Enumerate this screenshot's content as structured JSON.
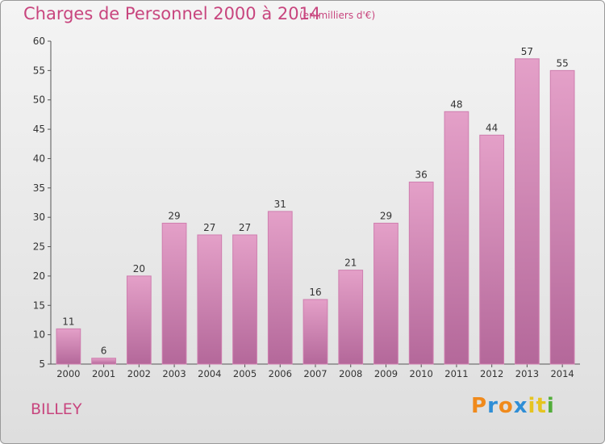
{
  "header": {
    "title": "Charges de Personnel 2000 à 2014",
    "subtitle": "(en milliers d'€)"
  },
  "footer": {
    "commune": "BILLEY",
    "logo_letters": [
      "P",
      "r",
      "o",
      "x",
      "i",
      "t",
      "i"
    ],
    "logo_colors": [
      "#f08a1c",
      "#2f8ed6",
      "#f08a1c",
      "#2f8ed6",
      "#e6c420",
      "#e6c420",
      "#52ad3a"
    ]
  },
  "chart_data": {
    "type": "bar",
    "title": "Charges de Personnel 2000 à 2014",
    "subtitle": "(en milliers d'€)",
    "categories": [
      "2000",
      "2001",
      "2002",
      "2003",
      "2004",
      "2005",
      "2006",
      "2007",
      "2008",
      "2009",
      "2010",
      "2011",
      "2012",
      "2013",
      "2014"
    ],
    "values": [
      11,
      6,
      20,
      29,
      27,
      27,
      31,
      16,
      21,
      29,
      36,
      48,
      44,
      57,
      55
    ],
    "ylim": [
      5,
      60
    ],
    "yticks": [
      5,
      10,
      15,
      20,
      25,
      30,
      35,
      40,
      45,
      50,
      55,
      60
    ],
    "grid": false,
    "colors": {
      "bar_top": "#e4a0c8",
      "bar_bottom": "#b4689a",
      "bar_edge": "#cf7eaf",
      "text": "#333333"
    }
  }
}
